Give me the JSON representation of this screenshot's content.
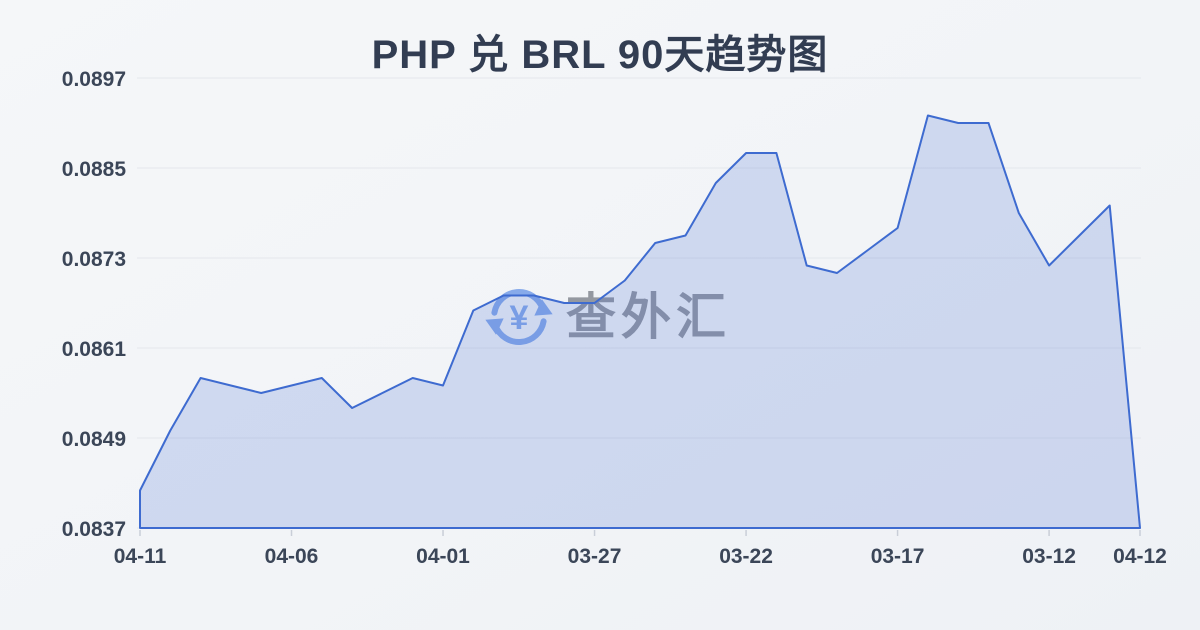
{
  "page": {
    "title": "PHP 兑 BRL 90天趋势图"
  },
  "watermark": {
    "text": "查外汇",
    "icon": "currency-exchange-icon",
    "symbol": "¥"
  },
  "chart_data": {
    "type": "area",
    "title": "PHP 兑 BRL 90天趋势图",
    "xlabel": "",
    "ylabel": "",
    "x": [
      "04-11",
      "04-10",
      "04-09",
      "04-08",
      "04-07",
      "04-06",
      "04-05",
      "04-04",
      "04-03",
      "04-02",
      "04-01",
      "03-31",
      "03-30",
      "03-29",
      "03-28",
      "03-27",
      "03-26",
      "03-25",
      "03-24",
      "03-23",
      "03-22",
      "03-21",
      "03-20",
      "03-19",
      "03-18",
      "03-17",
      "03-16",
      "03-15",
      "03-14",
      "03-13",
      "03-12",
      "03-11",
      "03-10",
      "04-12"
    ],
    "values": [
      0.0842,
      0.085,
      0.0857,
      0.0856,
      0.0855,
      0.0856,
      0.0857,
      0.0853,
      0.0855,
      0.0857,
      0.0856,
      0.0866,
      0.0868,
      0.0868,
      0.0867,
      0.0867,
      0.087,
      0.0875,
      0.0876,
      0.0883,
      0.0887,
      0.0887,
      0.0872,
      0.0871,
      0.0874,
      0.0877,
      0.0892,
      0.0891,
      0.0891,
      0.0879,
      0.0872,
      0.0876,
      0.088,
      0.0837
    ],
    "x_label_indices": [
      0,
      5,
      10,
      15,
      20,
      25,
      30,
      33
    ],
    "y_ticks": [
      0.0897,
      0.0885,
      0.0873,
      0.0861,
      0.0849,
      0.0837
    ],
    "y_tick_decimals": 4,
    "ylim": [
      0.0837,
      0.0897
    ],
    "grid": true,
    "legend_position": "none",
    "colors": {
      "line": "#3e6bd0",
      "fill": "rgba(64,106,208,0.20)",
      "grid": "#e4e7ec",
      "axis_tick": "#c9ced8",
      "axis_label": "#3b4658",
      "title": "#323d52",
      "watermark_text": "#8f949c",
      "watermark_icon": "#82a7ea",
      "background": "#f3f5f8"
    }
  }
}
